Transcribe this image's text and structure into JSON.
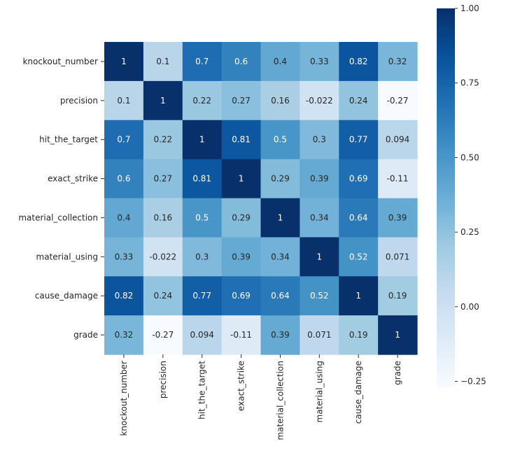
{
  "chart_data": {
    "type": "heatmap",
    "title": "",
    "row_labels": [
      "knockout_number",
      "precision",
      "hit_the_target",
      "exact_strike",
      "material_collection",
      "material_using",
      "cause_damage",
      "grade"
    ],
    "col_labels": [
      "knockout_number",
      "precision",
      "hit_the_target",
      "exact_strike",
      "material_collection",
      "material_using",
      "cause_damage",
      "grade"
    ],
    "values": [
      [
        1,
        0.1,
        0.7,
        0.6,
        0.4,
        0.33,
        0.82,
        0.32
      ],
      [
        0.1,
        1,
        0.22,
        0.27,
        0.16,
        -0.022,
        0.24,
        -0.27
      ],
      [
        0.7,
        0.22,
        1,
        0.81,
        0.5,
        0.3,
        0.77,
        0.094
      ],
      [
        0.6,
        0.27,
        0.81,
        1,
        0.29,
        0.39,
        0.69,
        -0.11
      ],
      [
        0.4,
        0.16,
        0.5,
        0.29,
        1,
        0.34,
        0.64,
        0.39
      ],
      [
        0.33,
        -0.022,
        0.3,
        0.39,
        0.34,
        1,
        0.52,
        0.071
      ],
      [
        0.82,
        0.24,
        0.77,
        0.69,
        0.64,
        0.52,
        1,
        0.19
      ],
      [
        0.32,
        -0.27,
        0.094,
        -0.11,
        0.39,
        0.071,
        0.19,
        1
      ]
    ],
    "annotations": [
      [
        "1",
        "0.1",
        "0.7",
        "0.6",
        "0.4",
        "0.33",
        "0.82",
        "0.32"
      ],
      [
        "0.1",
        "1",
        "0.22",
        "0.27",
        "0.16",
        "-0.022",
        "0.24",
        "-0.27"
      ],
      [
        "0.7",
        "0.22",
        "1",
        "0.81",
        "0.5",
        "0.3",
        "0.77",
        "0.094"
      ],
      [
        "0.6",
        "0.27",
        "0.81",
        "1",
        "0.29",
        "0.39",
        "0.69",
        "-0.11"
      ],
      [
        "0.4",
        "0.16",
        "0.5",
        "0.29",
        "1",
        "0.34",
        "0.64",
        "0.39"
      ],
      [
        "0.33",
        "-0.022",
        "0.3",
        "0.39",
        "0.34",
        "1",
        "0.52",
        "0.071"
      ],
      [
        "0.82",
        "0.24",
        "0.77",
        "0.69",
        "0.64",
        "0.52",
        "1",
        "0.19"
      ],
      [
        "0.32",
        "-0.27",
        "0.094",
        "-0.11",
        "0.39",
        "0.071",
        "0.19",
        "1"
      ]
    ],
    "colorbar": {
      "vmin": -0.27,
      "vmax": 1.0,
      "ticks": [
        -0.25,
        0.0,
        0.25,
        0.5,
        0.75,
        1.0
      ],
      "tick_labels": [
        "−0.25",
        "0.00",
        "0.25",
        "0.50",
        "0.75",
        "1.00"
      ],
      "colormap": "Blues"
    }
  },
  "colors": {
    "low": "#f7fbff",
    "high": "#08306b",
    "text_dark": "#262626",
    "text_light": "#ffffff"
  }
}
